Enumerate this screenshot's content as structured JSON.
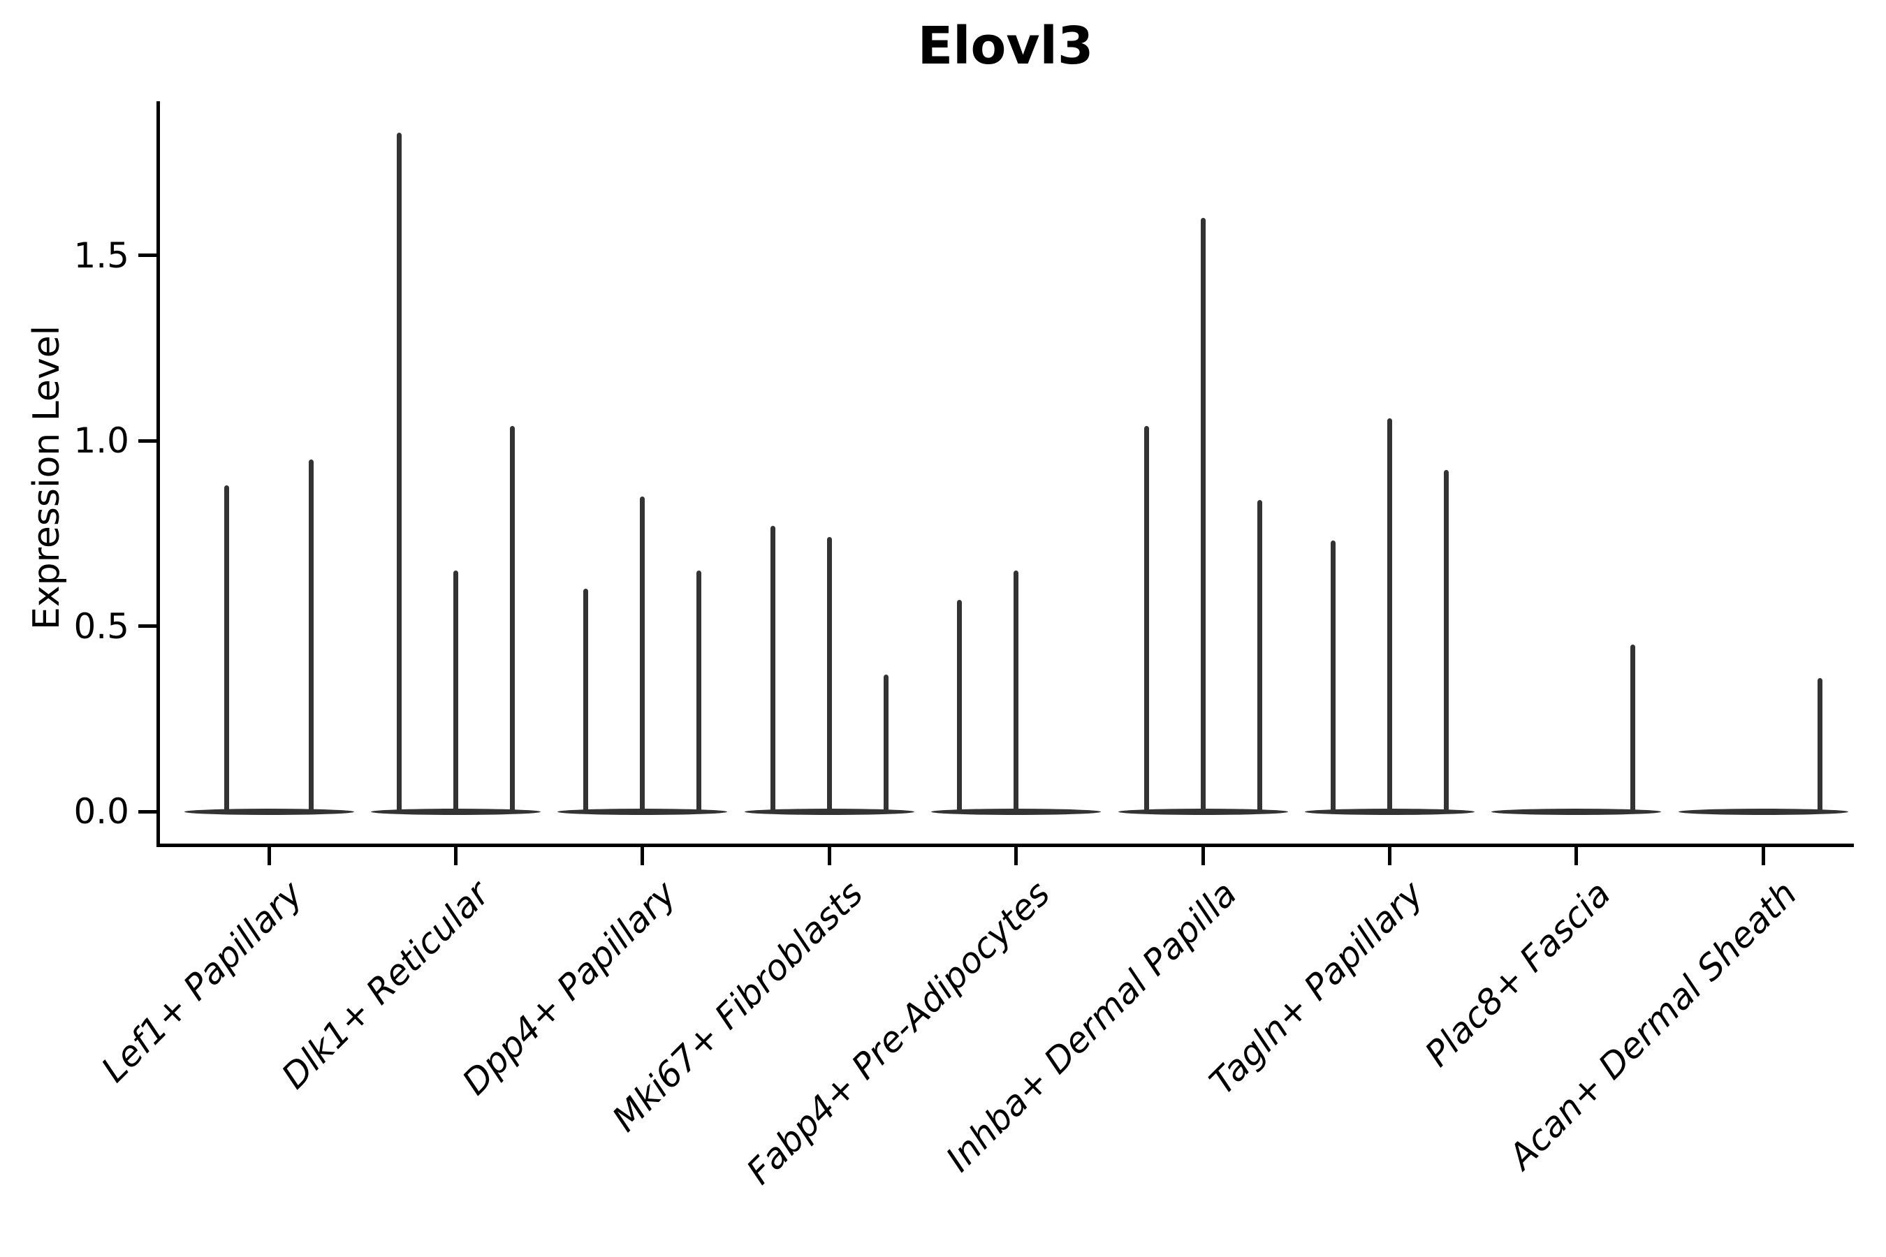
{
  "chart_data": {
    "type": "violin",
    "title": "Elovl3",
    "ylabel": "Expression Level",
    "xlabel": "",
    "ylim": [
      -0.09,
      1.92
    ],
    "yticks": [
      0.0,
      0.5,
      1.0,
      1.5
    ],
    "ytick_labels": [
      "0.0",
      "0.5",
      "1.0",
      "1.5"
    ],
    "grid": false,
    "legend": false,
    "violin_color": "#333333",
    "axis_color": "#000000",
    "description": "Each category shows very thin violins collapsed at 0 with narrow spikes rising to the listed peak expression value; a peak of 0 means a flat violin lying on the baseline.",
    "categories": [
      "Lef1+ Papillary",
      "Dlk1+ Reticular",
      "Dpp4+ Papillary",
      "Mki67+ Fibroblasts",
      "Fabp4+ Pre-Adipocytes",
      "Inhba+ Dermal Papilla",
      "Tagln+ Papillary",
      "Plac8+ Fascia",
      "Acan+ Dermal Sheath"
    ],
    "groups": [
      {
        "category": "Lef1+ Papillary",
        "violin_peaks": [
          0.88,
          0.95
        ]
      },
      {
        "category": "Dlk1+ Reticular",
        "violin_peaks": [
          1.83,
          0.65,
          1.04
        ]
      },
      {
        "category": "Dpp4+ Papillary",
        "violin_peaks": [
          0.6,
          0.85,
          0.65
        ]
      },
      {
        "category": "Mki67+ Fibroblasts",
        "violin_peaks": [
          0.77,
          0.74,
          0.37
        ]
      },
      {
        "category": "Fabp4+ Pre-Adipocytes",
        "violin_peaks": [
          0.57,
          0.65,
          0.0
        ]
      },
      {
        "category": "Inhba+ Dermal Papilla",
        "violin_peaks": [
          1.04,
          1.6,
          0.84
        ]
      },
      {
        "category": "Tagln+ Papillary",
        "violin_peaks": [
          0.73,
          1.06,
          0.92
        ]
      },
      {
        "category": "Plac8+ Fascia",
        "violin_peaks": [
          0.0,
          0.0,
          0.45
        ]
      },
      {
        "category": "Acan+ Dermal Sheath",
        "violin_peaks": [
          0.0,
          0.0,
          0.36
        ]
      }
    ]
  }
}
